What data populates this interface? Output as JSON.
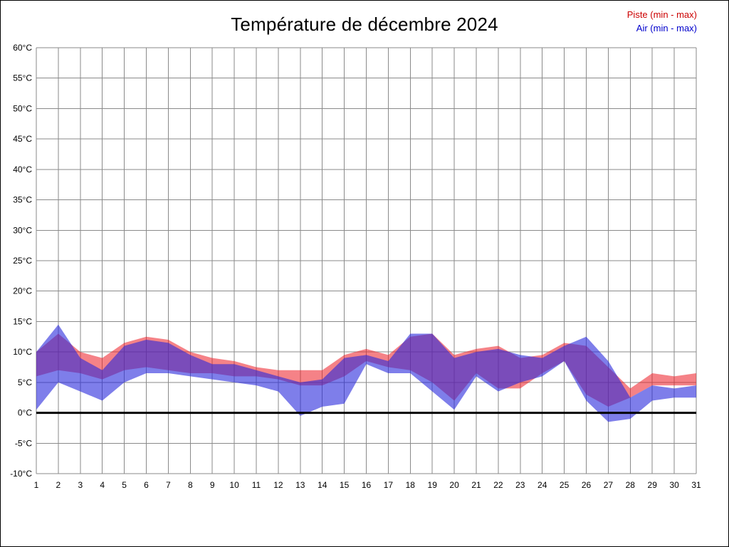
{
  "page": {
    "title": "Température de décembre 2024"
  },
  "legend": {
    "piste_label": "Piste (min - max)",
    "air_label": "Air (min - max)",
    "piste_color": "#cc0000",
    "air_color": "#0000cc"
  },
  "chart_data": {
    "type": "area",
    "subtype": "min-max-band",
    "title": "Température de décembre 2024",
    "xlabel": "",
    "ylabel": "",
    "ylim": [
      -10,
      60
    ],
    "grid": true,
    "zero_line": true,
    "legend_position": "top-right",
    "x": [
      1,
      2,
      3,
      4,
      5,
      6,
      7,
      8,
      9,
      10,
      11,
      12,
      13,
      14,
      15,
      16,
      17,
      18,
      19,
      20,
      21,
      22,
      23,
      24,
      25,
      26,
      27,
      28,
      29,
      30,
      31
    ],
    "yticks": [
      {
        "value": 60,
        "label": "60°C"
      },
      {
        "value": 55,
        "label": "55°C"
      },
      {
        "value": 50,
        "label": "50°C"
      },
      {
        "value": 45,
        "label": "45°C"
      },
      {
        "value": 40,
        "label": "40°C"
      },
      {
        "value": 35,
        "label": "35°C"
      },
      {
        "value": 30,
        "label": "30°C"
      },
      {
        "value": 25,
        "label": "25°C"
      },
      {
        "value": 20,
        "label": "20°C"
      },
      {
        "value": 15,
        "label": "15°C"
      },
      {
        "value": 10,
        "label": "10°C"
      },
      {
        "value": 5,
        "label": "5°C"
      },
      {
        "value": 0,
        "label": "0°C"
      },
      {
        "value": -5,
        "label": "-5°C"
      },
      {
        "value": -10,
        "label": "-10°C"
      }
    ],
    "series": [
      {
        "name": "Piste (min - max)",
        "fill": "#ed1c24",
        "opacity": 0.55,
        "max": [
          10,
          13,
          10,
          9,
          11.5,
          12.5,
          12,
          10,
          9,
          8.5,
          7.5,
          7,
          7,
          7,
          9.5,
          10.5,
          9.5,
          12.5,
          13,
          9.5,
          10.5,
          11,
          9,
          9.5,
          11.5,
          11,
          7.5,
          4,
          6.5,
          6,
          6.5
        ],
        "min": [
          6,
          7,
          6.5,
          5.5,
          7,
          7.5,
          7,
          6.5,
          6.5,
          6,
          6,
          5.5,
          4.5,
          4.5,
          6,
          8.5,
          7.5,
          7,
          5,
          2,
          6.5,
          4,
          4,
          6.5,
          8.5,
          3,
          1,
          2.5,
          4.5,
          4.5,
          4.5
        ]
      },
      {
        "name": "Air (min - max)",
        "fill": "#2828dc",
        "opacity": 0.6,
        "max": [
          10,
          14.5,
          9,
          7,
          11,
          12,
          11.5,
          9.5,
          8,
          8,
          7,
          6,
          5,
          5.5,
          9,
          9.5,
          8.5,
          13,
          13,
          9,
          10,
          10.5,
          9.5,
          9,
          11,
          12.5,
          8.5,
          2.5,
          4.5,
          4,
          4.5
        ],
        "min": [
          0.5,
          5,
          3.5,
          2,
          5,
          6.5,
          6.5,
          6,
          5.5,
          5,
          4.5,
          3.5,
          -0.5,
          1,
          1.5,
          8,
          6.5,
          6.5,
          3.5,
          0.5,
          6,
          3.5,
          5,
          6,
          8.5,
          2,
          -1.5,
          -1,
          2,
          2.5,
          2.5
        ]
      }
    ]
  }
}
